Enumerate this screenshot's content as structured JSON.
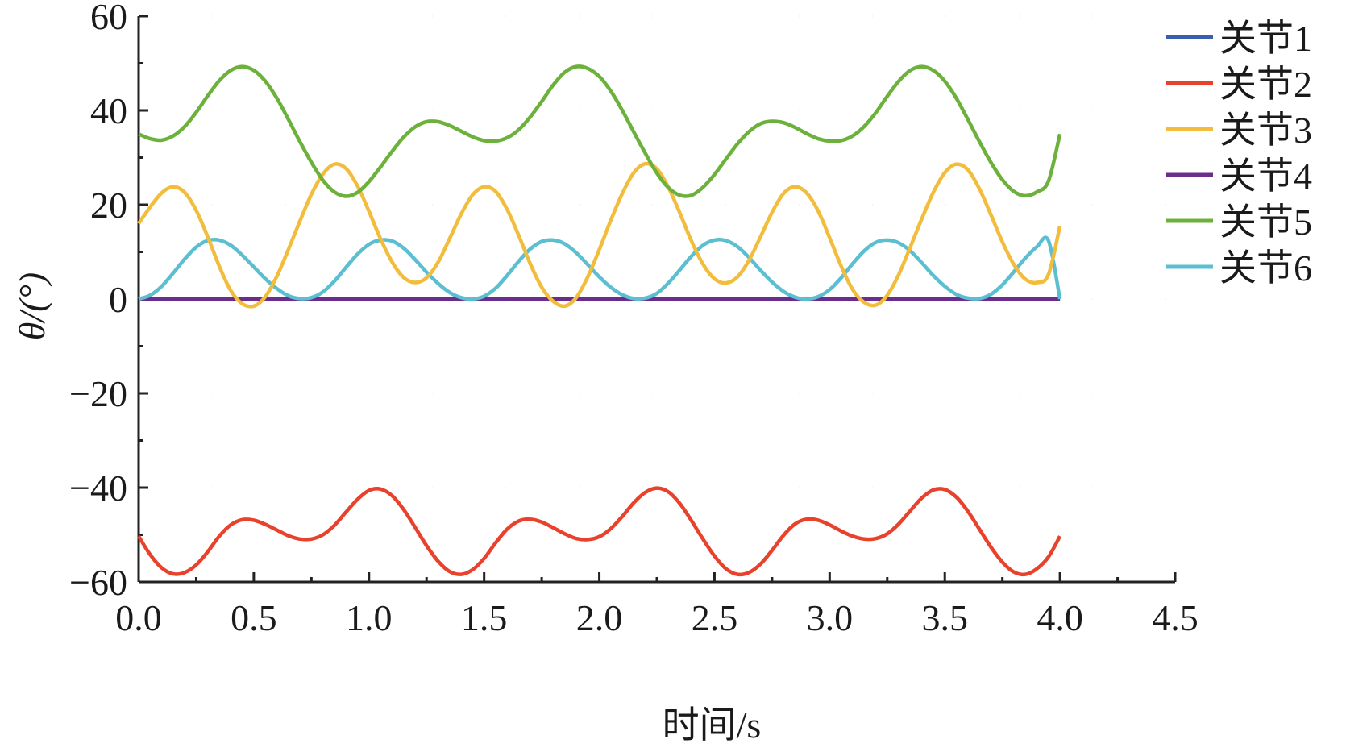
{
  "chart_data": {
    "type": "line",
    "title": "",
    "xlabel": "时间/s",
    "ylabel": "θ/(°)",
    "xlim": [
      0,
      4.5
    ],
    "ylim": [
      -60,
      60
    ],
    "xticks": [
      "0.0",
      "0.5",
      "1.0",
      "1.5",
      "2.0",
      "2.5",
      "3.0",
      "3.5",
      "4.0",
      "4.5"
    ],
    "yticks": [
      "60",
      "40",
      "20",
      "0",
      "−20",
      "−40",
      "−60"
    ],
    "legend_position": "top-right",
    "grid": false,
    "x": [
      0.0,
      0.05,
      0.1,
      0.15,
      0.2,
      0.25,
      0.3,
      0.35,
      0.4,
      0.45,
      0.5,
      0.55,
      0.6,
      0.65,
      0.7,
      0.75,
      0.8,
      0.85,
      0.9,
      0.95,
      1.0,
      1.05,
      1.1,
      1.15,
      1.2,
      1.25,
      1.3,
      1.35,
      1.4,
      1.45,
      1.5,
      1.55,
      1.6,
      1.65,
      1.7,
      1.75,
      1.8,
      1.85,
      1.9,
      1.95,
      2.0,
      2.05,
      2.1,
      2.15,
      2.2,
      2.25,
      2.3,
      2.35,
      2.4,
      2.45,
      2.5,
      2.55,
      2.6,
      2.65,
      2.7,
      2.75,
      2.8,
      2.85,
      2.9,
      2.95,
      3.0,
      3.05,
      3.1,
      3.15,
      3.2,
      3.25,
      3.3,
      3.35,
      3.4,
      3.45,
      3.5,
      3.55,
      3.6,
      3.65,
      3.7,
      3.75,
      3.8,
      3.85,
      3.9,
      3.95,
      4.0
    ],
    "series": [
      {
        "name": "关节1",
        "color": "#3a5fb0",
        "values": [
          0,
          0,
          0,
          0,
          0,
          0,
          0,
          0,
          0,
          0,
          0,
          0,
          0,
          0,
          0,
          0,
          0,
          0,
          0,
          0,
          0,
          0,
          0,
          0,
          0,
          0,
          0,
          0,
          0,
          0,
          0,
          0,
          0,
          0,
          0,
          0,
          0,
          0,
          0,
          0,
          0,
          0,
          0,
          0,
          0,
          0,
          0,
          0,
          0,
          0,
          0,
          0,
          0,
          0,
          0,
          0,
          0,
          0,
          0,
          0,
          0,
          0,
          0,
          0,
          0,
          0,
          0,
          0,
          0,
          0,
          0,
          0,
          0,
          0,
          0,
          0,
          0,
          0,
          0,
          0,
          0
        ]
      },
      {
        "name": "关节2",
        "color": "#e8412c",
        "values": [
          -50.3,
          -54.2,
          -57.0,
          -58.3,
          -58.0,
          -56.4,
          -53.6,
          -50.3,
          -47.9,
          -46.8,
          -46.9,
          -47.8,
          -49.0,
          -50.2,
          -50.9,
          -50.9,
          -50.0,
          -48.0,
          -45.2,
          -42.5,
          -40.6,
          -40.3,
          -41.7,
          -44.6,
          -48.4,
          -52.3,
          -55.6,
          -57.8,
          -58.4,
          -57.4,
          -55.0,
          -51.7,
          -48.8,
          -47.1,
          -46.7,
          -47.3,
          -48.5,
          -49.8,
          -50.8,
          -51.0,
          -50.4,
          -48.7,
          -46.1,
          -43.2,
          -41.0,
          -40.1,
          -40.9,
          -43.4,
          -47.0,
          -50.9,
          -54.5,
          -57.2,
          -58.4,
          -58.0,
          -56.2,
          -53.3,
          -50.1,
          -47.7,
          -46.7,
          -46.9,
          -47.9,
          -49.2,
          -50.3,
          -50.9,
          -50.8,
          -49.8,
          -47.7,
          -44.9,
          -42.2,
          -40.5,
          -40.4,
          -42.0,
          -45.0,
          -48.8,
          -52.6,
          -55.8,
          -57.9,
          -58.4,
          -57.2,
          -54.7,
          -50.3
        ]
      },
      {
        "name": "关节3",
        "color": "#f2bd3c",
        "values": [
          16.0,
          19.5,
          22.5,
          23.8,
          22.6,
          18.8,
          13.2,
          7.0,
          1.8,
          -1.0,
          -1.5,
          0.5,
          4.8,
          10.5,
          16.5,
          22.2,
          26.5,
          28.6,
          27.7,
          24.0,
          18.6,
          12.8,
          7.9,
          4.6,
          3.5,
          4.5,
          7.8,
          12.8,
          18.0,
          22.1,
          23.8,
          22.8,
          19.0,
          13.5,
          7.5,
          2.5,
          -0.5,
          -1.5,
          0.3,
          4.7,
          10.5,
          16.7,
          22.4,
          26.8,
          28.7,
          27.6,
          23.7,
          18.2,
          12.3,
          7.4,
          4.3,
          3.4,
          4.7,
          8.2,
          13.2,
          18.4,
          22.4,
          23.8,
          22.5,
          18.7,
          13.0,
          7.0,
          2.0,
          -0.7,
          -1.3,
          0.8,
          5.2,
          11.0,
          17.0,
          22.6,
          26.8,
          28.6,
          27.4,
          23.4,
          17.9,
          12.1,
          7.3,
          4.2,
          3.5,
          5.2,
          15.5
        ]
      },
      {
        "name": "关节4",
        "color": "#6a2d8c",
        "values": [
          0,
          0,
          0,
          0,
          0,
          0,
          0,
          0,
          0,
          0,
          0,
          0,
          0,
          0,
          0,
          0,
          0,
          0,
          0,
          0,
          0,
          0,
          0,
          0,
          0,
          0,
          0,
          0,
          0,
          0,
          0,
          0,
          0,
          0,
          0,
          0,
          0,
          0,
          0,
          0,
          0,
          0,
          0,
          0,
          0,
          0,
          0,
          0,
          0,
          0,
          0,
          0,
          0,
          0,
          0,
          0,
          0,
          0,
          0,
          0,
          0,
          0,
          0,
          0,
          0,
          0,
          0,
          0,
          0,
          0,
          0,
          0,
          0,
          0,
          0,
          0,
          0,
          0,
          0,
          0,
          0
        ]
      },
      {
        "name": "关节5",
        "color": "#6cb13b",
        "values": [
          35.0,
          34.0,
          33.7,
          34.6,
          36.6,
          39.6,
          43.1,
          46.3,
          48.5,
          49.3,
          48.5,
          46.2,
          42.6,
          38.1,
          33.4,
          29.0,
          25.2,
          22.7,
          21.8,
          22.6,
          24.9,
          28.0,
          31.3,
          34.3,
          36.5,
          37.6,
          37.6,
          36.8,
          35.6,
          34.4,
          33.6,
          33.5,
          34.2,
          35.9,
          38.6,
          41.9,
          45.4,
          48.1,
          49.3,
          48.9,
          47.2,
          44.1,
          40.0,
          35.4,
          30.9,
          26.7,
          23.6,
          22.0,
          22.0,
          23.7,
          26.4,
          29.7,
          32.9,
          35.5,
          37.2,
          37.7,
          37.4,
          36.4,
          35.1,
          34.0,
          33.5,
          33.6,
          34.6,
          36.6,
          39.5,
          43.0,
          46.2,
          48.5,
          49.3,
          48.5,
          46.2,
          42.6,
          38.1,
          33.4,
          29.0,
          25.3,
          22.8,
          21.9,
          22.7,
          25.0,
          35.0
        ]
      },
      {
        "name": "关节6",
        "color": "#5bbfd1",
        "values": [
          0,
          0.8,
          2.7,
          5.5,
          8.5,
          11.0,
          12.4,
          12.5,
          11.4,
          9.3,
          6.8,
          4.3,
          2.2,
          0.7,
          0.1,
          0.3,
          1.5,
          3.8,
          6.7,
          9.5,
          11.6,
          12.5,
          12.3,
          10.8,
          8.4,
          5.7,
          3.3,
          1.4,
          0.3,
          0.0,
          0.6,
          2.3,
          5.0,
          8.0,
          10.6,
          12.2,
          12.5,
          11.7,
          9.8,
          7.3,
          4.7,
          2.5,
          0.9,
          0.1,
          0.2,
          1.2,
          3.4,
          6.2,
          9.1,
          11.4,
          12.5,
          12.4,
          11.1,
          8.8,
          6.1,
          3.6,
          1.6,
          0.4,
          0.0,
          0.5,
          2.0,
          4.5,
          7.5,
          10.2,
          12.0,
          12.5,
          11.9,
          10.2,
          7.7,
          5.0,
          2.7,
          1.0,
          0.2,
          0.1,
          1.0,
          3.0,
          5.8,
          8.7,
          11.1,
          12.4,
          0
        ]
      }
    ]
  }
}
